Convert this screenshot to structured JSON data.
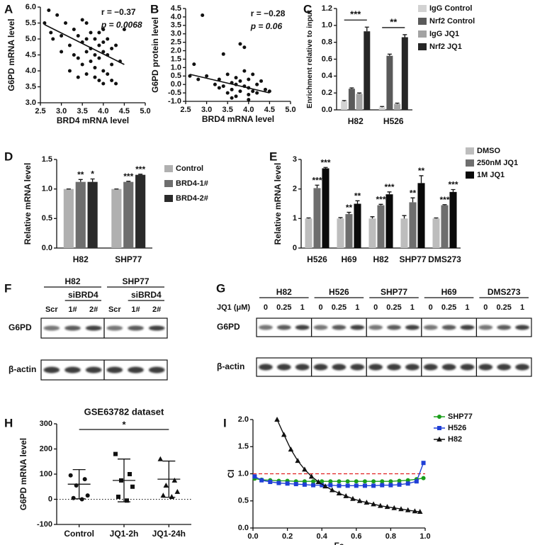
{
  "chart_data": [
    {
      "type": "scatter",
      "panel": "A",
      "xlabel": "BRD4 mRNA level",
      "ylabel": "G6PD mRNA level",
      "annotations": [
        "r = −0.37",
        "p = 0.0068"
      ],
      "x": [
        2.6,
        2.7,
        2.75,
        2.8,
        2.9,
        3.0,
        3.1,
        3.2,
        3.3,
        3.3,
        3.4,
        3.4,
        3.5,
        3.5,
        3.5,
        3.6,
        3.6,
        3.6,
        3.7,
        3.7,
        3.7,
        3.8,
        3.8,
        3.8,
        3.8,
        3.9,
        3.9,
        3.9,
        4.0,
        4.0,
        4.0,
        4.0,
        4.1,
        4.1,
        4.1,
        4.2,
        4.2,
        4.3,
        4.3,
        4.4,
        4.5,
        3.0,
        3.2,
        3.4,
        3.6,
        3.9,
        4.0,
        4.2
      ],
      "y": [
        5.5,
        5.9,
        5.2,
        5.0,
        5.75,
        4.6,
        5.5,
        4.8,
        4.5,
        5.3,
        5.1,
        4.4,
        4.9,
        5.6,
        4.2,
        4.6,
        5.0,
        3.9,
        4.7,
        5.2,
        4.3,
        4.5,
        5.0,
        4.1,
        3.8,
        4.8,
        4.4,
        3.7,
        5.3,
        4.6,
        4.0,
        3.6,
        5.0,
        4.5,
        3.9,
        4.7,
        4.2,
        4.8,
        3.6,
        4.3,
        5.3,
        5.1,
        4.0,
        3.8,
        5.5,
        5.2,
        4.9,
        3.7
      ],
      "fit": {
        "x": [
          2.6,
          4.5
        ],
        "y": [
          5.45,
          4.2
        ]
      },
      "xlim": [
        2.5,
        5.0
      ],
      "xticks": [
        2.5,
        {
          "value": 3,
          "label": "3.0"
        },
        3.5,
        {
          "value": 4,
          "label": "4.0"
        },
        4.5,
        {
          "value": 5,
          "label": "5.0"
        }
      ],
      "ylim": [
        3.0,
        6.0
      ],
      "yticks": [
        {
          "value": 3,
          "label": "3.0"
        },
        3.5,
        {
          "value": 4,
          "label": "4.0"
        },
        4.5,
        {
          "value": 5,
          "label": "5.0"
        },
        5.5,
        {
          "value": 6,
          "label": "6.0"
        }
      ]
    },
    {
      "type": "scatter",
      "panel": "B",
      "xlabel": "BRD4 mRNA level",
      "ylabel": "G6PD protein level",
      "annotations": [
        "r = −0.28",
        "p = 0.06"
      ],
      "x": [
        2.6,
        2.7,
        2.8,
        2.9,
        3.0,
        3.2,
        3.3,
        3.4,
        3.5,
        3.5,
        3.6,
        3.6,
        3.7,
        3.7,
        3.8,
        3.8,
        3.8,
        3.9,
        3.9,
        4.0,
        4.0,
        4.0,
        4.1,
        4.1,
        4.2,
        4.2,
        4.3,
        4.4,
        3.4,
        3.6,
        3.9,
        4.0,
        3.7,
        3.3,
        4.5
      ],
      "y": [
        0.5,
        1.2,
        0.3,
        4.1,
        0.5,
        0.0,
        -0.2,
        1.8,
        0.6,
        -0.5,
        0.1,
        -0.3,
        0.4,
        -0.7,
        2.4,
        0.2,
        -0.4,
        0.8,
        -0.1,
        0.3,
        -0.6,
        -0.2,
        0.6,
        -0.4,
        0.0,
        -0.5,
        0.2,
        -0.3,
        -0.1,
        -0.8,
        2.2,
        -0.9,
        0.0,
        0.3,
        -0.4
      ],
      "fit": {
        "x": [
          2.6,
          4.5
        ],
        "y": [
          0.6,
          -0.5
        ]
      },
      "xlim": [
        2.5,
        5.0
      ],
      "xticks": [
        2.5,
        {
          "value": 3,
          "label": "3.0"
        },
        3.5,
        {
          "value": 4,
          "label": "4.0"
        },
        4.5,
        {
          "value": 5,
          "label": "5.0"
        }
      ],
      "ylim": [
        -1.0,
        4.5
      ],
      "yticks": [
        {
          "value": -1,
          "label": "-1.0"
        },
        -0.5,
        {
          "value": 0,
          "label": "0.0"
        },
        0.5,
        {
          "value": 1,
          "label": "1.0"
        },
        1.5,
        {
          "value": 2,
          "label": "2.0"
        },
        2.5,
        {
          "value": 3,
          "label": "3.0"
        },
        3.5,
        {
          "value": 4,
          "label": "4.0"
        },
        4.5
      ]
    },
    {
      "type": "bar",
      "panel": "C",
      "ylabel": "Enrichment relative to input",
      "categories": [
        "H82",
        "H526"
      ],
      "series": [
        {
          "name": "IgG Control",
          "color": "#d2d2d2",
          "values": [
            0.1,
            0.03
          ],
          "errors": [
            0.01,
            0.01
          ]
        },
        {
          "name": "Nrf2 Control",
          "color": "#5a5a5a",
          "values": [
            0.25,
            0.64
          ],
          "errors": [
            0.01,
            0.02
          ]
        },
        {
          "name": "IgG JQ1",
          "color": "#a3a3a3",
          "values": [
            0.19,
            0.07
          ],
          "errors": [
            0.01,
            0.01
          ]
        },
        {
          "name": "Nrf2 JQ1",
          "color": "#262626",
          "values": [
            0.93,
            0.86
          ],
          "errors": [
            0.05,
            0.03
          ]
        }
      ],
      "group_significance": [
        "***",
        "**"
      ],
      "ylim": [
        0,
        1.2
      ],
      "yticks": [
        {
          "value": 0,
          "label": "0.0"
        },
        0.2,
        0.4,
        0.6,
        0.8,
        {
          "value": 1,
          "label": "1.0"
        },
        1.2
      ]
    },
    {
      "type": "bar",
      "panel": "D",
      "ylabel": "Relative mRNA level",
      "categories": [
        "H82",
        "SHP77"
      ],
      "series": [
        {
          "name": "Control",
          "color": "#b0b0b0",
          "values": [
            1.0,
            1.0
          ],
          "errors": [
            0,
            0
          ]
        },
        {
          "name": "BRD4-1#",
          "color": "#6e6e6e",
          "values": [
            1.12,
            1.12
          ],
          "errors": [
            0.04,
            0.01
          ],
          "significance": [
            "**",
            "***"
          ]
        },
        {
          "name": "BRD4-2#",
          "color": "#2a2a2a",
          "values": [
            1.12,
            1.24
          ],
          "errors": [
            0.05,
            0.01
          ],
          "significance": [
            "*",
            "***"
          ]
        }
      ],
      "ylim": [
        0,
        1.5
      ],
      "yticks": [
        {
          "value": 0,
          "label": "0.0"
        },
        0.5,
        {
          "value": 1,
          "label": "1.0"
        },
        1.5
      ]
    },
    {
      "type": "bar",
      "panel": "E",
      "ylabel": "Relative mRNA level",
      "categories": [
        "H526",
        "H69",
        "H82",
        "SHP77",
        "DMS273"
      ],
      "series": [
        {
          "name": "DMSO",
          "color": "#bdbdbd",
          "values": [
            1.0,
            1.0,
            1.0,
            1.0,
            1.0
          ],
          "errors": [
            0.02,
            0.03,
            0.06,
            0.1,
            0.02
          ]
        },
        {
          "name": "250nM JQ1",
          "color": "#6e6e6e",
          "values": [
            2.03,
            1.15,
            1.45,
            1.55,
            1.45
          ],
          "errors": [
            0.1,
            0.06,
            0.03,
            0.15,
            0.02
          ],
          "significance": [
            "***",
            "**",
            "***",
            "**",
            "***"
          ]
        },
        {
          "name": "1M JQ1",
          "color": "#0a0a0a",
          "values": [
            2.7,
            1.5,
            1.82,
            2.2,
            1.9
          ],
          "errors": [
            0.03,
            0.1,
            0.08,
            0.25,
            0.08
          ],
          "significance": [
            "***",
            "**",
            "***",
            "**",
            "***"
          ]
        }
      ],
      "ylim": [
        0,
        3
      ],
      "yticks": [
        0,
        1,
        2,
        3
      ]
    },
    {
      "type": "dotplot",
      "panel": "H",
      "title": "GSE63782 dataset",
      "ylabel": "G6PD mRNA level",
      "categories": [
        "Control",
        "JQ1-2h",
        "JQ1-24h"
      ],
      "markers": [
        "circle",
        "square",
        "triangle"
      ],
      "points": [
        [
          95,
          80,
          55,
          15,
          5,
          0
        ],
        [
          180,
          100,
          75,
          50,
          10,
          -5
        ],
        [
          160,
          75,
          55,
          30,
          15,
          10
        ]
      ],
      "means": [
        60,
        75,
        80
      ],
      "sd": [
        58,
        85,
        72
      ],
      "significance": "*",
      "ref_line": 0,
      "ylim": [
        -100,
        300
      ],
      "yticks": [
        -100,
        0,
        100,
        200,
        300
      ]
    },
    {
      "type": "line",
      "panel": "I",
      "xlabel": "Fa",
      "ylabel": "CI",
      "ref_line": 1,
      "series": [
        {
          "name": "SHP77",
          "color": "#1a9e1a",
          "marker": "circle",
          "x": [
            0.01,
            0.05,
            0.1,
            0.15,
            0.2,
            0.25,
            0.3,
            0.35,
            0.4,
            0.45,
            0.5,
            0.55,
            0.6,
            0.65,
            0.7,
            0.75,
            0.8,
            0.85,
            0.9,
            0.95,
            0.99
          ],
          "values": [
            0.91,
            0.89,
            0.88,
            0.87,
            0.87,
            0.86,
            0.86,
            0.86,
            0.86,
            0.86,
            0.86,
            0.86,
            0.86,
            0.86,
            0.86,
            0.86,
            0.86,
            0.87,
            0.88,
            0.9,
            0.92
          ]
        },
        {
          "name": "H526",
          "color": "#1f3fd6",
          "marker": "square",
          "x": [
            0.01,
            0.05,
            0.1,
            0.15,
            0.2,
            0.25,
            0.3,
            0.35,
            0.4,
            0.45,
            0.5,
            0.55,
            0.6,
            0.65,
            0.7,
            0.75,
            0.8,
            0.85,
            0.9,
            0.95,
            0.99
          ],
          "values": [
            0.95,
            0.88,
            0.85,
            0.83,
            0.82,
            0.81,
            0.8,
            0.79,
            0.79,
            0.79,
            0.78,
            0.78,
            0.78,
            0.78,
            0.78,
            0.79,
            0.79,
            0.8,
            0.82,
            0.86,
            1.2
          ]
        },
        {
          "name": "H82",
          "color": "#111111",
          "marker": "triangle",
          "x": [
            0.14,
            0.18,
            0.22,
            0.26,
            0.3,
            0.34,
            0.38,
            0.42,
            0.46,
            0.5,
            0.54,
            0.58,
            0.62,
            0.66,
            0.7,
            0.74,
            0.78,
            0.82,
            0.86,
            0.9,
            0.94,
            0.97
          ],
          "values": [
            2.0,
            1.72,
            1.45,
            1.24,
            1.08,
            0.95,
            0.85,
            0.77,
            0.7,
            0.64,
            0.59,
            0.54,
            0.5,
            0.47,
            0.44,
            0.41,
            0.39,
            0.37,
            0.35,
            0.33,
            0.31,
            0.3
          ]
        }
      ],
      "xlim": [
        0,
        1
      ],
      "xticks": [
        {
          "value": 0,
          "label": "0.0"
        },
        0.2,
        0.4,
        0.6,
        0.8,
        {
          "value": 1,
          "label": "1.0"
        }
      ],
      "ylim": [
        0,
        2
      ],
      "yticks": [
        {
          "value": 0,
          "label": "0.0"
        },
        0.5,
        {
          "value": 1,
          "label": "1.0"
        },
        1.5,
        {
          "value": 2,
          "label": "2.0"
        }
      ]
    }
  ],
  "blots": [
    {
      "panel": "F",
      "groups": [
        {
          "name": "H82",
          "sub": "siBRD4",
          "lanes": [
            "Scr",
            "1#",
            "2#"
          ]
        },
        {
          "name": "SHP77",
          "sub": "siBRD4",
          "lanes": [
            "Scr",
            "1#",
            "2#"
          ]
        }
      ],
      "rows": [
        "G6PD",
        "β-actin"
      ]
    },
    {
      "panel": "G",
      "lane_label": "JQ1 (μM)",
      "groups": [
        {
          "name": "H82",
          "lanes": [
            "0",
            "0.25",
            "1"
          ]
        },
        {
          "name": "H526",
          "lanes": [
            "0",
            "0.25",
            "1"
          ]
        },
        {
          "name": "SHP77",
          "lanes": [
            "0",
            "0.25",
            "1"
          ]
        },
        {
          "name": "H69",
          "lanes": [
            "0",
            "0.25",
            "1"
          ]
        },
        {
          "name": "DMS273",
          "lanes": [
            "0",
            "0.25",
            "1"
          ]
        }
      ],
      "rows": [
        "G6PD",
        "β-actin"
      ]
    }
  ]
}
